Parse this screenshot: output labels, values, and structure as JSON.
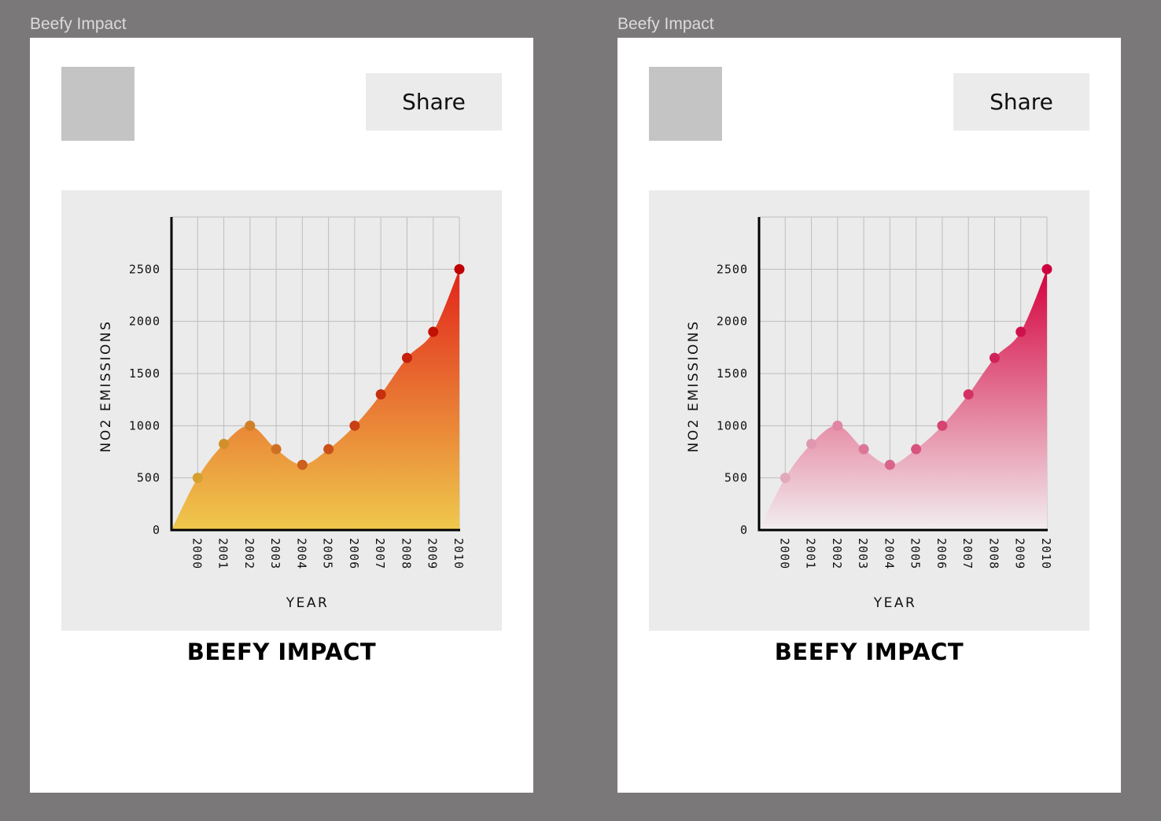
{
  "frames": [
    {
      "title": "Beefy Impact",
      "share_label": "Share",
      "caption": "BEEFY IMPACT",
      "colors": {
        "top": "#e2231a",
        "bottom": "#efc94c",
        "dot_start": "#d4a030",
        "dot_end": "#c00000"
      }
    },
    {
      "title": "Beefy Impact",
      "share_label": "Share",
      "caption": "BEEFY IMPACT",
      "colors": {
        "top": "#d4003c",
        "bottom": "#f2eef0",
        "dot_start": "#e2a8bc",
        "dot_end": "#cc0040"
      }
    }
  ],
  "chart_data": [
    {
      "type": "area",
      "x": [
        "2000",
        "2001",
        "2002",
        "2003",
        "2004",
        "2005",
        "2006",
        "2007",
        "2008",
        "2009",
        "2010"
      ],
      "y": [
        500,
        825,
        1000,
        775,
        625,
        775,
        1000,
        1300,
        1650,
        1900,
        2500
      ],
      "xlabel": "YEAR",
      "ylabel": "NO2 EMISSIONS",
      "yticks": [
        "0",
        "500",
        "1000",
        "1500",
        "2000",
        "2500"
      ],
      "ylim": [
        0,
        3000
      ],
      "grid": true
    },
    {
      "type": "area",
      "x": [
        "2000",
        "2001",
        "2002",
        "2003",
        "2004",
        "2005",
        "2006",
        "2007",
        "2008",
        "2009",
        "2010"
      ],
      "y": [
        500,
        825,
        1000,
        775,
        625,
        775,
        1000,
        1300,
        1650,
        1900,
        2500
      ],
      "xlabel": "YEAR",
      "ylabel": "NO2 EMISSIONS",
      "yticks": [
        "0",
        "500",
        "1000",
        "1500",
        "2000",
        "2500"
      ],
      "ylim": [
        0,
        3000
      ],
      "grid": true
    }
  ]
}
